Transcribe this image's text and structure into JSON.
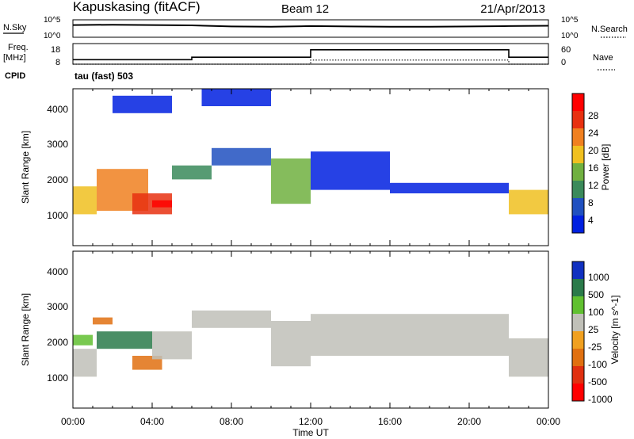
{
  "header": {
    "station": "Kapuskasing (fitACF)",
    "beam": "Beam 12",
    "date": "21/Apr/2013"
  },
  "noise_panel": {
    "left_label": "N.Sky",
    "right_label": "N.Search",
    "left_ticks": [
      "10^5",
      "10^0"
    ],
    "right_ticks": [
      "10^5",
      "10^0"
    ]
  },
  "freq_panel": {
    "left_label_top": "Freq.",
    "left_label_unit": "[MHz]",
    "left_ticks": [
      "18",
      "8"
    ],
    "right_label": "Nave",
    "right_ticks": [
      "60",
      "0"
    ],
    "cpid_label": "CPID",
    "cpid_value": "tau (fast) 503"
  },
  "time_axis": {
    "label": "Time UT",
    "ticks": [
      "00:00",
      "04:00",
      "08:00",
      "12:00",
      "16:00",
      "20:00",
      "00:00"
    ]
  },
  "power_panel": {
    "ylabel": "Slant Range [km]",
    "yticks": [
      "4000",
      "3000",
      "2000",
      "1000"
    ],
    "colorbar_label": "Power [dB]",
    "colorbar_ticks": [
      "28",
      "24",
      "20",
      "16",
      "12",
      "8",
      "4"
    ],
    "colors": [
      "#0020e0",
      "#2050c0",
      "#3a8a5a",
      "#70b040",
      "#f0c020",
      "#f08020",
      "#e83010",
      "#ff0000"
    ]
  },
  "velocity_panel": {
    "ylabel": "Slant Range [km]",
    "yticks": [
      "4000",
      "3000",
      "2000",
      "1000"
    ],
    "colorbar_label": "Velocity [m s^-1]",
    "colorbar_ticks": [
      "1000",
      "500",
      "100",
      "25",
      "-25",
      "-100",
      "-500",
      "-1000"
    ],
    "colors": [
      "#1030c0",
      "#2a7a4a",
      "#60c030",
      "#c0c0b8",
      "#f0a020",
      "#e07010",
      "#e03010",
      "#ff0000"
    ]
  },
  "chart_data": [
    {
      "type": "line",
      "title": "N.Sky / N.Search",
      "x_units": "hours UT",
      "xlim": [
        0,
        24
      ],
      "series": [
        {
          "name": "N.Sky",
          "x": [
            0,
            2,
            4,
            6,
            8,
            10,
            12,
            14,
            16,
            18,
            20,
            22,
            24
          ],
          "values": [
            0.7,
            0.72,
            0.7,
            0.68,
            0.62,
            0.6,
            0.64,
            0.62,
            0.6,
            0.6,
            0.62,
            0.64,
            0.66
          ]
        }
      ]
    },
    {
      "type": "line",
      "title": "Freq. / Nave",
      "x_units": "hours UT",
      "xlim": [
        0,
        24
      ],
      "ylim": [
        8,
        18
      ],
      "series": [
        {
          "name": "Freq.",
          "x": [
            0,
            6,
            6,
            12,
            12,
            22,
            22,
            24
          ],
          "values": [
            10.2,
            10.2,
            11.4,
            11.4,
            15,
            15,
            11.4,
            11.4
          ]
        },
        {
          "name": "Nave",
          "x": [
            0,
            12,
            12,
            22,
            22,
            24
          ],
          "values": [
            8,
            8,
            10,
            10,
            8,
            8
          ]
        }
      ]
    },
    {
      "type": "heatmap",
      "title": "Power [dB]",
      "x_units": "hours UT",
      "ylabel": "Slant Range [km]",
      "ylim": [
        0,
        4500
      ],
      "clim": [
        0,
        30
      ],
      "regions": [
        {
          "t0": 0.0,
          "t1": 1.2,
          "r0": 900,
          "r1": 1700,
          "level": 4
        },
        {
          "t0": 1.2,
          "t1": 3.8,
          "r0": 1000,
          "r1": 2200,
          "level": 5
        },
        {
          "t0": 3.0,
          "t1": 5.0,
          "r0": 900,
          "r1": 1500,
          "level": 6
        },
        {
          "t0": 4.0,
          "t1": 5.0,
          "r0": 1100,
          "r1": 1300,
          "level": 7
        },
        {
          "t0": 5.0,
          "t1": 7.0,
          "r0": 1900,
          "r1": 2300,
          "level": 2
        },
        {
          "t0": 7.0,
          "t1": 10.0,
          "r0": 2300,
          "r1": 2800,
          "level": 1
        },
        {
          "t0": 10.0,
          "t1": 12.0,
          "r0": 1200,
          "r1": 2500,
          "level": 3
        },
        {
          "t0": 12.0,
          "t1": 16.0,
          "r0": 1600,
          "r1": 2700,
          "level": 0
        },
        {
          "t0": 16.0,
          "t1": 22.0,
          "r0": 1500,
          "r1": 1800,
          "level": 0
        },
        {
          "t0": 22.0,
          "t1": 24.0,
          "r0": 900,
          "r1": 1600,
          "level": 4
        },
        {
          "t0": 2.0,
          "t1": 5.0,
          "r0": 3800,
          "r1": 4300,
          "level": 0
        },
        {
          "t0": 6.5,
          "t1": 10.0,
          "r0": 4000,
          "r1": 4500,
          "level": 0
        }
      ]
    },
    {
      "type": "heatmap",
      "title": "Velocity [m s^-1]",
      "x_units": "hours UT",
      "ylabel": "Slant Range [km]",
      "ylim": [
        0,
        4500
      ],
      "clim": [
        -1000,
        1000
      ],
      "regions": [
        {
          "t0": 0.0,
          "t1": 1.2,
          "r0": 900,
          "r1": 1700,
          "level": 3
        },
        {
          "t0": 0.0,
          "t1": 1.0,
          "r0": 1800,
          "r1": 2100,
          "level": 2
        },
        {
          "t0": 1.2,
          "t1": 4.0,
          "r0": 1700,
          "r1": 2200,
          "level": 1
        },
        {
          "t0": 1.0,
          "t1": 2.0,
          "r0": 2400,
          "r1": 2600,
          "level": 5
        },
        {
          "t0": 3.0,
          "t1": 4.5,
          "r0": 1100,
          "r1": 1500,
          "level": 5
        },
        {
          "t0": 4.0,
          "t1": 6.0,
          "r0": 1400,
          "r1": 2200,
          "level": 3
        },
        {
          "t0": 6.0,
          "t1": 10.0,
          "r0": 2300,
          "r1": 2800,
          "level": 3
        },
        {
          "t0": 10.0,
          "t1": 12.0,
          "r0": 1200,
          "r1": 2500,
          "level": 3
        },
        {
          "t0": 12.0,
          "t1": 22.0,
          "r0": 1500,
          "r1": 2700,
          "level": 3
        },
        {
          "t0": 22.0,
          "t1": 24.0,
          "r0": 900,
          "r1": 2000,
          "level": 3
        }
      ]
    }
  ]
}
